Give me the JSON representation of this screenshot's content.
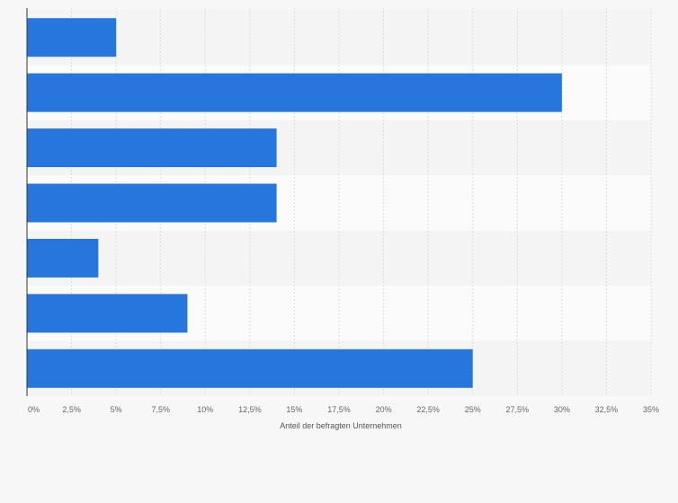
{
  "chart_data": {
    "type": "bar",
    "orientation": "horizontal",
    "title": "",
    "xlabel": "Anteil der befragten Unternehmen",
    "ylabel": "",
    "categories": [
      "",
      "",
      "",
      "",
      "",
      "",
      ""
    ],
    "values": [
      5,
      30,
      14,
      14,
      4,
      9,
      25
    ],
    "xlim": [
      0,
      35
    ],
    "ticks": [
      "0%",
      "2,5%",
      "5%",
      "7,5%",
      "10%",
      "12,5%",
      "15%",
      "17,5%",
      "20%",
      "22,5%",
      "25%",
      "27,5%",
      "30%",
      "32,5%",
      "35%"
    ],
    "grid": true,
    "legend": "none",
    "bar_color": "#2776dd",
    "band_colors": [
      "#f4f4f4",
      "#fbfbfb"
    ]
  }
}
